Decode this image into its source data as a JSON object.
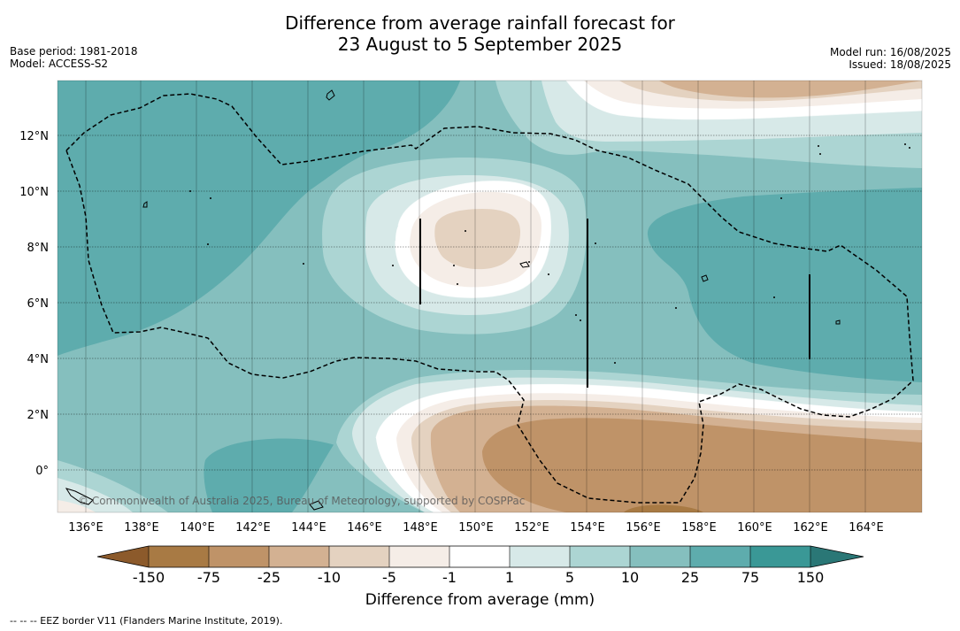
{
  "title_line1": "Difference from average rainfall forecast for",
  "title_line2": "23 August to 5 September 2025",
  "base_period": "Base period: 1981-2018",
  "model": "Model: ACCESS-S2",
  "model_run": "Model run: 16/08/2025",
  "issued": "Issued: 18/08/2025",
  "copyright": "© Commonwealth of Australia 2025, Bureau of Meteorology, supported by COSPPac",
  "footnote": "--  --  -- EEZ border V11 (Flanders Marine Institute, 2019).",
  "map": {
    "lat_ticks": [
      "12°N",
      "10°N",
      "8°N",
      "6°N",
      "4°N",
      "2°N",
      "0°"
    ],
    "lon_ticks": [
      "136°E",
      "138°E",
      "140°E",
      "142°E",
      "144°E",
      "146°E",
      "148°E",
      "150°E",
      "152°E",
      "154°E",
      "156°E",
      "158°E",
      "160°E",
      "162°E",
      "164°E"
    ]
  },
  "colorbar": {
    "label": "Difference from average (mm)",
    "ticks": [
      "-150",
      "-75",
      "-25",
      "-10",
      "-5",
      "-1",
      "1",
      "5",
      "10",
      "25",
      "75",
      "150"
    ],
    "colors": {
      "under": "#8c5a2b",
      "bins": [
        "#a87a44",
        "#bf9368",
        "#d3b192",
        "#e4d2c0",
        "#f5ede7",
        "#ffffff",
        "#d7e9e8",
        "#acd5d3",
        "#85bfbe",
        "#5eacad",
        "#3a9896"
      ],
      "over": "#2a7776"
    }
  }
}
